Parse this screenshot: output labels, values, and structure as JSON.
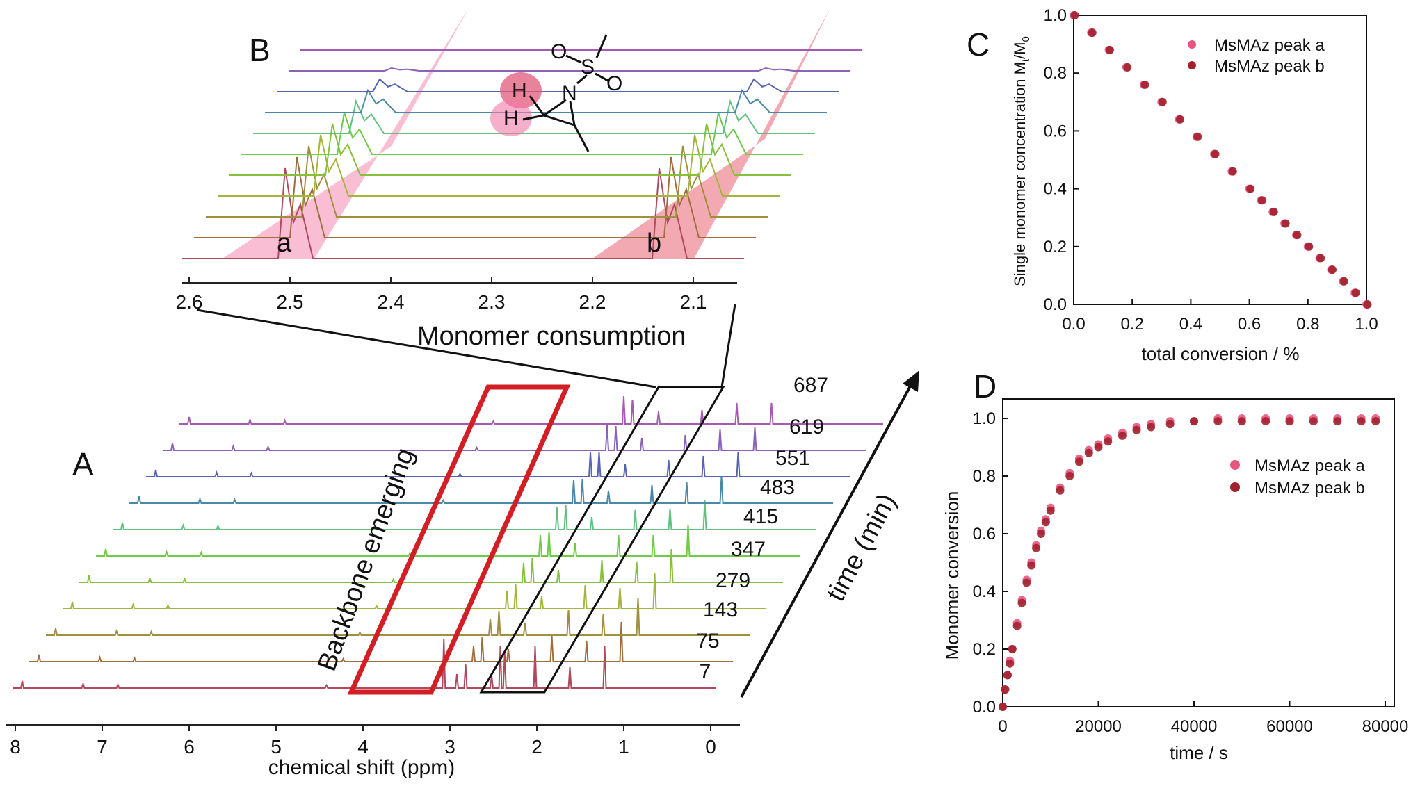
{
  "colors": {
    "spectra": [
      "#b0485e",
      "#a06d3d",
      "#9f8f3e",
      "#a4b43c",
      "#86c03d",
      "#6fca47",
      "#62c080",
      "#4a89a5",
      "#5564b4",
      "#8a63b8",
      "#a65bb3"
    ],
    "pink_band": "#f7a8c6",
    "red_band": "#ee8590",
    "red_box": "#d21f26",
    "peak_a": "#e8557f",
    "peak_b": "#a1212f"
  },
  "panel_A": {
    "letter": "A",
    "xlabel": "chemical shift (ppm)",
    "xticks": [
      "8",
      "7",
      "6",
      "5",
      "4",
      "3",
      "2",
      "1",
      "0"
    ],
    "time_label": "time (min)",
    "times": [
      "7",
      "75",
      "143",
      "279",
      "347",
      "415",
      "483",
      "551",
      "619",
      "687"
    ],
    "backbone_label": "Backbone emerging",
    "consumption_label": "Monomer consumption"
  },
  "panel_B": {
    "letter": "B",
    "xticks": [
      "2.6",
      "2.5",
      "2.4",
      "2.3",
      "2.2",
      "2.1"
    ],
    "peak_a_label": "a",
    "peak_b_label": "b",
    "molecule": {
      "o1": "O",
      "s": "S",
      "o2": "O",
      "n": "N",
      "h1": "H",
      "h2": "H"
    }
  },
  "panel_C": {
    "letter": "C",
    "xlabel": "total conversion / %",
    "ylabel_main": "Single monomer concentration M",
    "ylabel_sub1": "t",
    "ylabel_mid": "/M",
    "ylabel_sub2": "0",
    "xticks": [
      "0.0",
      "0.2",
      "0.4",
      "0.6",
      "0.8",
      "1.0"
    ],
    "yticks": [
      "0.0",
      "0.2",
      "0.4",
      "0.6",
      "0.8",
      "1.0"
    ],
    "legend": [
      "MsMAz peak a",
      "MsMAz peak b"
    ]
  },
  "panel_D": {
    "letter": "D",
    "xlabel": "time / s",
    "ylabel": "Monomer conversion",
    "xticks": [
      "0",
      "20000",
      "40000",
      "60000",
      "80000"
    ],
    "yticks": [
      "0.0",
      "0.2",
      "0.4",
      "0.6",
      "0.8",
      "1.0"
    ],
    "legend": [
      "MsMAz peak a",
      "MsMAz peak b"
    ]
  },
  "chart_data": [
    {
      "type": "scatter",
      "panel": "C",
      "xlabel": "total conversion / %",
      "ylabel": "Single monomer concentration Mt/M0",
      "xlim": [
        0,
        1.0
      ],
      "ylim": [
        0,
        1.0
      ],
      "series": [
        {
          "name": "MsMAz peak a",
          "x": [
            0.0,
            0.06,
            0.12,
            0.18,
            0.24,
            0.3,
            0.36,
            0.42,
            0.48,
            0.54,
            0.6,
            0.64,
            0.68,
            0.72,
            0.76,
            0.8,
            0.84,
            0.88,
            0.92,
            0.96,
            1.0
          ],
          "y": [
            1.0,
            0.94,
            0.88,
            0.82,
            0.76,
            0.7,
            0.64,
            0.58,
            0.52,
            0.46,
            0.4,
            0.36,
            0.32,
            0.28,
            0.24,
            0.2,
            0.16,
            0.12,
            0.08,
            0.04,
            0.0
          ]
        },
        {
          "name": "MsMAz peak b",
          "x": [
            0.0,
            0.06,
            0.12,
            0.18,
            0.24,
            0.3,
            0.36,
            0.42,
            0.48,
            0.54,
            0.6,
            0.64,
            0.68,
            0.72,
            0.76,
            0.8,
            0.84,
            0.88,
            0.92,
            0.96,
            1.0
          ],
          "y": [
            1.0,
            0.94,
            0.88,
            0.82,
            0.76,
            0.7,
            0.64,
            0.58,
            0.52,
            0.46,
            0.4,
            0.36,
            0.32,
            0.28,
            0.24,
            0.2,
            0.16,
            0.12,
            0.08,
            0.04,
            0.0
          ]
        }
      ]
    },
    {
      "type": "scatter",
      "panel": "D",
      "xlabel": "time / s",
      "ylabel": "Monomer conversion",
      "xlim": [
        0,
        80000
      ],
      "ylim": [
        0,
        1.0
      ],
      "series": [
        {
          "name": "MsMAz peak a",
          "x": [
            0,
            500,
            1000,
            1500,
            2000,
            3000,
            4000,
            5000,
            6000,
            7000,
            8000,
            9000,
            10000,
            12000,
            14000,
            16000,
            18000,
            20000,
            22000,
            25000,
            28000,
            31000,
            35000,
            40000,
            45000,
            50000,
            55000,
            60000,
            65000,
            70000,
            75000,
            78000
          ],
          "y": [
            0.0,
            0.06,
            0.11,
            0.16,
            0.2,
            0.29,
            0.37,
            0.44,
            0.5,
            0.56,
            0.61,
            0.65,
            0.69,
            0.76,
            0.81,
            0.86,
            0.89,
            0.91,
            0.93,
            0.95,
            0.97,
            0.98,
            0.99,
            0.99,
            1.0,
            1.0,
            1.0,
            1.0,
            1.0,
            1.0,
            1.0,
            1.0
          ]
        },
        {
          "name": "MsMAz peak b",
          "x": [
            0,
            500,
            1000,
            1500,
            2000,
            3000,
            4000,
            5000,
            6000,
            7000,
            8000,
            9000,
            10000,
            12000,
            14000,
            16000,
            18000,
            20000,
            22000,
            25000,
            28000,
            31000,
            35000,
            40000,
            45000,
            50000,
            55000,
            60000,
            65000,
            70000,
            75000,
            78000
          ],
          "y": [
            0.0,
            0.06,
            0.11,
            0.15,
            0.2,
            0.28,
            0.36,
            0.43,
            0.49,
            0.55,
            0.6,
            0.64,
            0.68,
            0.75,
            0.8,
            0.85,
            0.88,
            0.9,
            0.92,
            0.94,
            0.96,
            0.97,
            0.98,
            0.99,
            0.99,
            0.99,
            0.99,
            0.99,
            0.99,
            0.99,
            0.99,
            0.99
          ]
        }
      ]
    }
  ]
}
